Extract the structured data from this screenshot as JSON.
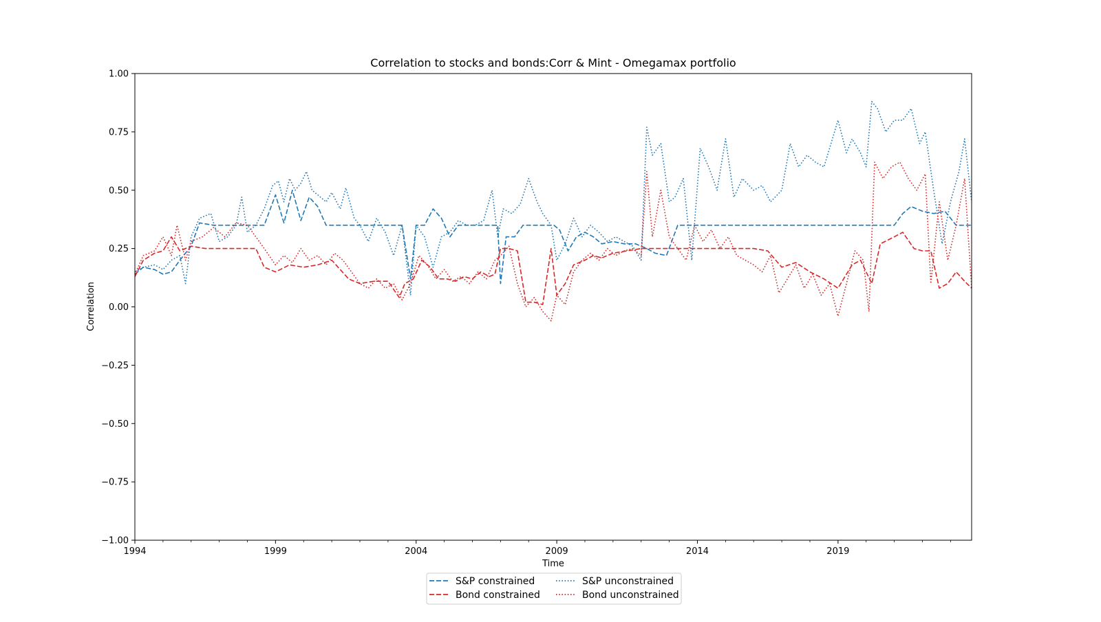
{
  "chart_data": {
    "type": "line",
    "title": "Correlation to stocks and bonds:Corr & Mint - Omegamax portfolio",
    "xlabel": "Time",
    "ylabel": "Correlation",
    "xlim": [
      1994.0,
      2023.75
    ],
    "ylim": [
      -1.0,
      1.0
    ],
    "x_ticks": [
      1994,
      1999,
      2004,
      2009,
      2014,
      2019
    ],
    "x_tick_labels": [
      "1994",
      "1999",
      "2004",
      "2009",
      "2014",
      "2019"
    ],
    "y_ticks": [
      -1.0,
      -0.75,
      -0.5,
      -0.25,
      0.0,
      0.25,
      0.5,
      0.75,
      1.0
    ],
    "y_tick_labels": [
      "−1.00",
      "−0.75",
      "−0.50",
      "−0.25",
      "0.00",
      "0.25",
      "0.50",
      "0.75",
      "1.00"
    ],
    "grid": false,
    "legend_position": "bottom-center",
    "series": [
      {
        "name": "S&P constrained",
        "color": "#1f77b4",
        "style": "dashed",
        "x": [
          1994.0,
          1994.3,
          1994.7,
          1995.0,
          1995.3,
          1995.6,
          1996.0,
          1996.3,
          1996.8,
          1997.3,
          1997.8,
          1998.3,
          1998.6,
          1999.0,
          1999.3,
          1999.6,
          1999.9,
          2000.2,
          2000.5,
          2000.8,
          2001.0,
          2001.5,
          2002.0,
          2002.3,
          2002.8,
          2003.2,
          2003.5,
          2003.8,
          2004.0,
          2004.3,
          2004.6,
          2004.9,
          2005.2,
          2005.5,
          2005.8,
          2006.1,
          2006.4,
          2006.7,
          2006.9,
          2007.0,
          2007.2,
          2007.5,
          2007.8,
          2008.2,
          2008.6,
          2008.9,
          2009.1,
          2009.4,
          2009.7,
          2010.0,
          2010.3,
          2010.6,
          2011.0,
          2011.4,
          2011.8,
          2012.2,
          2012.5,
          2012.9,
          2013.3,
          2014.0,
          2015.0,
          2016.0,
          2017.0,
          2018.0,
          2019.0,
          2020.0,
          2021.0,
          2021.3,
          2021.6,
          2022.0,
          2022.4,
          2022.8,
          2023.2,
          2023.5,
          2023.75
        ],
        "y": [
          0.14,
          0.17,
          0.16,
          0.14,
          0.15,
          0.2,
          0.26,
          0.36,
          0.35,
          0.35,
          0.35,
          0.35,
          0.35,
          0.48,
          0.36,
          0.5,
          0.37,
          0.47,
          0.43,
          0.35,
          0.35,
          0.35,
          0.35,
          0.35,
          0.35,
          0.35,
          0.35,
          0.12,
          0.35,
          0.35,
          0.42,
          0.38,
          0.3,
          0.35,
          0.35,
          0.35,
          0.35,
          0.35,
          0.35,
          0.1,
          0.3,
          0.3,
          0.35,
          0.35,
          0.35,
          0.35,
          0.33,
          0.24,
          0.3,
          0.32,
          0.3,
          0.27,
          0.28,
          0.27,
          0.27,
          0.25,
          0.23,
          0.22,
          0.35,
          0.35,
          0.35,
          0.35,
          0.35,
          0.35,
          0.35,
          0.35,
          0.35,
          0.4,
          0.43,
          0.41,
          0.4,
          0.41,
          0.35,
          0.35,
          0.35
        ]
      },
      {
        "name": "Bond constrained",
        "color": "#d62728",
        "style": "dashed",
        "x": [
          1994.0,
          1994.3,
          1994.7,
          1995.0,
          1995.3,
          1995.6,
          1996.0,
          1996.5,
          1997.0,
          1997.5,
          1998.0,
          1998.3,
          1998.6,
          1999.0,
          1999.5,
          2000.0,
          2000.5,
          2001.0,
          2001.3,
          2001.6,
          2002.0,
          2002.5,
          2003.0,
          2003.4,
          2003.6,
          2003.9,
          2004.2,
          2004.5,
          2004.8,
          2005.1,
          2005.4,
          2005.7,
          2006.0,
          2006.3,
          2006.6,
          2006.8,
          2007.0,
          2007.3,
          2007.6,
          2007.9,
          2008.2,
          2008.5,
          2008.8,
          2009.0,
          2009.3,
          2009.6,
          2010.0,
          2010.3,
          2010.6,
          2011.0,
          2011.5,
          2012.0,
          2012.5,
          2013.0,
          2014.0,
          2015.0,
          2016.0,
          2016.5,
          2017.0,
          2017.5,
          2018.0,
          2018.5,
          2019.0,
          2019.5,
          2019.8,
          2020.2,
          2020.5,
          2021.0,
          2021.3,
          2021.7,
          2022.0,
          2022.3,
          2022.6,
          2022.9,
          2023.2,
          2023.5,
          2023.75
        ],
        "y": [
          0.13,
          0.2,
          0.23,
          0.24,
          0.3,
          0.24,
          0.26,
          0.25,
          0.25,
          0.25,
          0.25,
          0.25,
          0.17,
          0.15,
          0.18,
          0.17,
          0.18,
          0.2,
          0.16,
          0.12,
          0.1,
          0.11,
          0.11,
          0.04,
          0.1,
          0.12,
          0.2,
          0.17,
          0.12,
          0.12,
          0.11,
          0.13,
          0.12,
          0.15,
          0.13,
          0.14,
          0.25,
          0.25,
          0.24,
          0.02,
          0.02,
          0.01,
          0.25,
          0.05,
          0.1,
          0.18,
          0.2,
          0.22,
          0.21,
          0.23,
          0.24,
          0.25,
          0.25,
          0.25,
          0.25,
          0.25,
          0.25,
          0.24,
          0.17,
          0.19,
          0.15,
          0.12,
          0.08,
          0.18,
          0.2,
          0.1,
          0.27,
          0.3,
          0.32,
          0.25,
          0.24,
          0.24,
          0.08,
          0.1,
          0.15,
          0.11,
          0.08
        ]
      },
      {
        "name": "S&P unconstrained",
        "color": "#1f77b4",
        "style": "dotted",
        "x": [
          1994.0,
          1994.3,
          1994.7,
          1995.0,
          1995.3,
          1995.6,
          1995.8,
          1996.0,
          1996.3,
          1996.7,
          1997.0,
          1997.3,
          1997.6,
          1997.8,
          1998.0,
          1998.3,
          1998.6,
          1998.9,
          1999.1,
          1999.3,
          1999.5,
          1999.7,
          1999.9,
          2000.1,
          2000.3,
          2000.5,
          2000.8,
          2001.0,
          2001.3,
          2001.5,
          2001.8,
          2002.0,
          2002.3,
          2002.6,
          2002.9,
          2003.2,
          2003.5,
          2003.8,
          2004.0,
          2004.3,
          2004.6,
          2004.9,
          2005.2,
          2005.5,
          2005.8,
          2006.1,
          2006.4,
          2006.7,
          2006.9,
          2007.1,
          2007.4,
          2007.7,
          2008.0,
          2008.3,
          2008.5,
          2008.8,
          2009.0,
          2009.3,
          2009.6,
          2009.9,
          2010.2,
          2010.5,
          2010.8,
          2011.1,
          2011.4,
          2011.7,
          2012.0,
          2012.2,
          2012.4,
          2012.7,
          2013.0,
          2013.2,
          2013.5,
          2013.8,
          2014.1,
          2014.4,
          2014.7,
          2015.0,
          2015.3,
          2015.6,
          2016.0,
          2016.3,
          2016.6,
          2017.0,
          2017.3,
          2017.6,
          2017.9,
          2018.2,
          2018.5,
          2018.8,
          2019.0,
          2019.3,
          2019.5,
          2019.8,
          2020.0,
          2020.2,
          2020.4,
          2020.7,
          2021.0,
          2021.3,
          2021.6,
          2021.9,
          2022.1,
          2022.4,
          2022.7,
          2023.0,
          2023.3,
          2023.5,
          2023.75
        ],
        "y": [
          0.15,
          0.17,
          0.18,
          0.16,
          0.2,
          0.22,
          0.1,
          0.3,
          0.38,
          0.4,
          0.28,
          0.3,
          0.35,
          0.47,
          0.32,
          0.35,
          0.42,
          0.52,
          0.54,
          0.45,
          0.55,
          0.5,
          0.53,
          0.58,
          0.5,
          0.48,
          0.45,
          0.49,
          0.42,
          0.51,
          0.38,
          0.35,
          0.28,
          0.38,
          0.32,
          0.22,
          0.35,
          0.05,
          0.35,
          0.3,
          0.17,
          0.3,
          0.32,
          0.37,
          0.35,
          0.35,
          0.37,
          0.5,
          0.3,
          0.42,
          0.4,
          0.44,
          0.55,
          0.45,
          0.4,
          0.35,
          0.2,
          0.27,
          0.38,
          0.3,
          0.35,
          0.32,
          0.28,
          0.3,
          0.28,
          0.26,
          0.2,
          0.77,
          0.65,
          0.7,
          0.45,
          0.47,
          0.55,
          0.2,
          0.68,
          0.6,
          0.5,
          0.72,
          0.47,
          0.55,
          0.5,
          0.52,
          0.45,
          0.5,
          0.7,
          0.6,
          0.65,
          0.62,
          0.6,
          0.72,
          0.8,
          0.66,
          0.72,
          0.66,
          0.6,
          0.88,
          0.85,
          0.75,
          0.8,
          0.8,
          0.85,
          0.7,
          0.75,
          0.5,
          0.27,
          0.45,
          0.58,
          0.72,
          0.45
        ]
      },
      {
        "name": "Bond unconstrained",
        "color": "#d62728",
        "style": "dotted",
        "x": [
          1994.0,
          1994.3,
          1994.7,
          1995.0,
          1995.3,
          1995.5,
          1995.8,
          1996.0,
          1996.4,
          1996.8,
          1997.2,
          1997.6,
          1998.0,
          1998.3,
          1998.6,
          1999.0,
          1999.3,
          1999.6,
          1999.9,
          2000.2,
          2000.5,
          2000.8,
          2001.1,
          2001.4,
          2001.7,
          2002.0,
          2002.3,
          2002.6,
          2002.9,
          2003.2,
          2003.5,
          2003.8,
          2004.1,
          2004.4,
          2004.7,
          2005.0,
          2005.3,
          2005.6,
          2005.9,
          2006.2,
          2006.5,
          2006.8,
          2007.0,
          2007.3,
          2007.6,
          2007.9,
          2008.2,
          2008.5,
          2008.8,
          2009.0,
          2009.3,
          2009.6,
          2009.9,
          2010.2,
          2010.5,
          2010.8,
          2011.1,
          2011.4,
          2011.7,
          2012.0,
          2012.2,
          2012.4,
          2012.7,
          2013.0,
          2013.3,
          2013.6,
          2013.9,
          2014.2,
          2014.5,
          2014.8,
          2015.1,
          2015.4,
          2015.7,
          2016.0,
          2016.3,
          2016.6,
          2016.9,
          2017.2,
          2017.5,
          2017.8,
          2018.1,
          2018.4,
          2018.7,
          2019.0,
          2019.3,
          2019.6,
          2019.9,
          2020.1,
          2020.3,
          2020.6,
          2020.9,
          2021.2,
          2021.5,
          2021.8,
          2022.1,
          2022.3,
          2022.6,
          2022.9,
          2023.2,
          2023.5,
          2023.75
        ],
        "y": [
          0.14,
          0.22,
          0.24,
          0.3,
          0.22,
          0.35,
          0.2,
          0.28,
          0.3,
          0.34,
          0.3,
          0.36,
          0.35,
          0.3,
          0.25,
          0.18,
          0.22,
          0.19,
          0.25,
          0.2,
          0.22,
          0.18,
          0.23,
          0.2,
          0.15,
          0.1,
          0.08,
          0.12,
          0.08,
          0.1,
          0.03,
          0.1,
          0.22,
          0.18,
          0.12,
          0.16,
          0.11,
          0.13,
          0.1,
          0.15,
          0.12,
          0.2,
          0.22,
          0.26,
          0.1,
          0.0,
          0.04,
          -0.02,
          -0.06,
          0.05,
          0.01,
          0.15,
          0.2,
          0.23,
          0.2,
          0.25,
          0.22,
          0.24,
          0.25,
          0.22,
          0.58,
          0.3,
          0.5,
          0.3,
          0.25,
          0.2,
          0.35,
          0.28,
          0.33,
          0.25,
          0.3,
          0.22,
          0.2,
          0.18,
          0.15,
          0.22,
          0.06,
          0.12,
          0.18,
          0.08,
          0.14,
          0.05,
          0.1,
          -0.04,
          0.1,
          0.24,
          0.2,
          -0.02,
          0.62,
          0.55,
          0.6,
          0.62,
          0.55,
          0.5,
          0.57,
          0.1,
          0.45,
          0.2,
          0.35,
          0.55,
          0.08
        ]
      }
    ]
  }
}
